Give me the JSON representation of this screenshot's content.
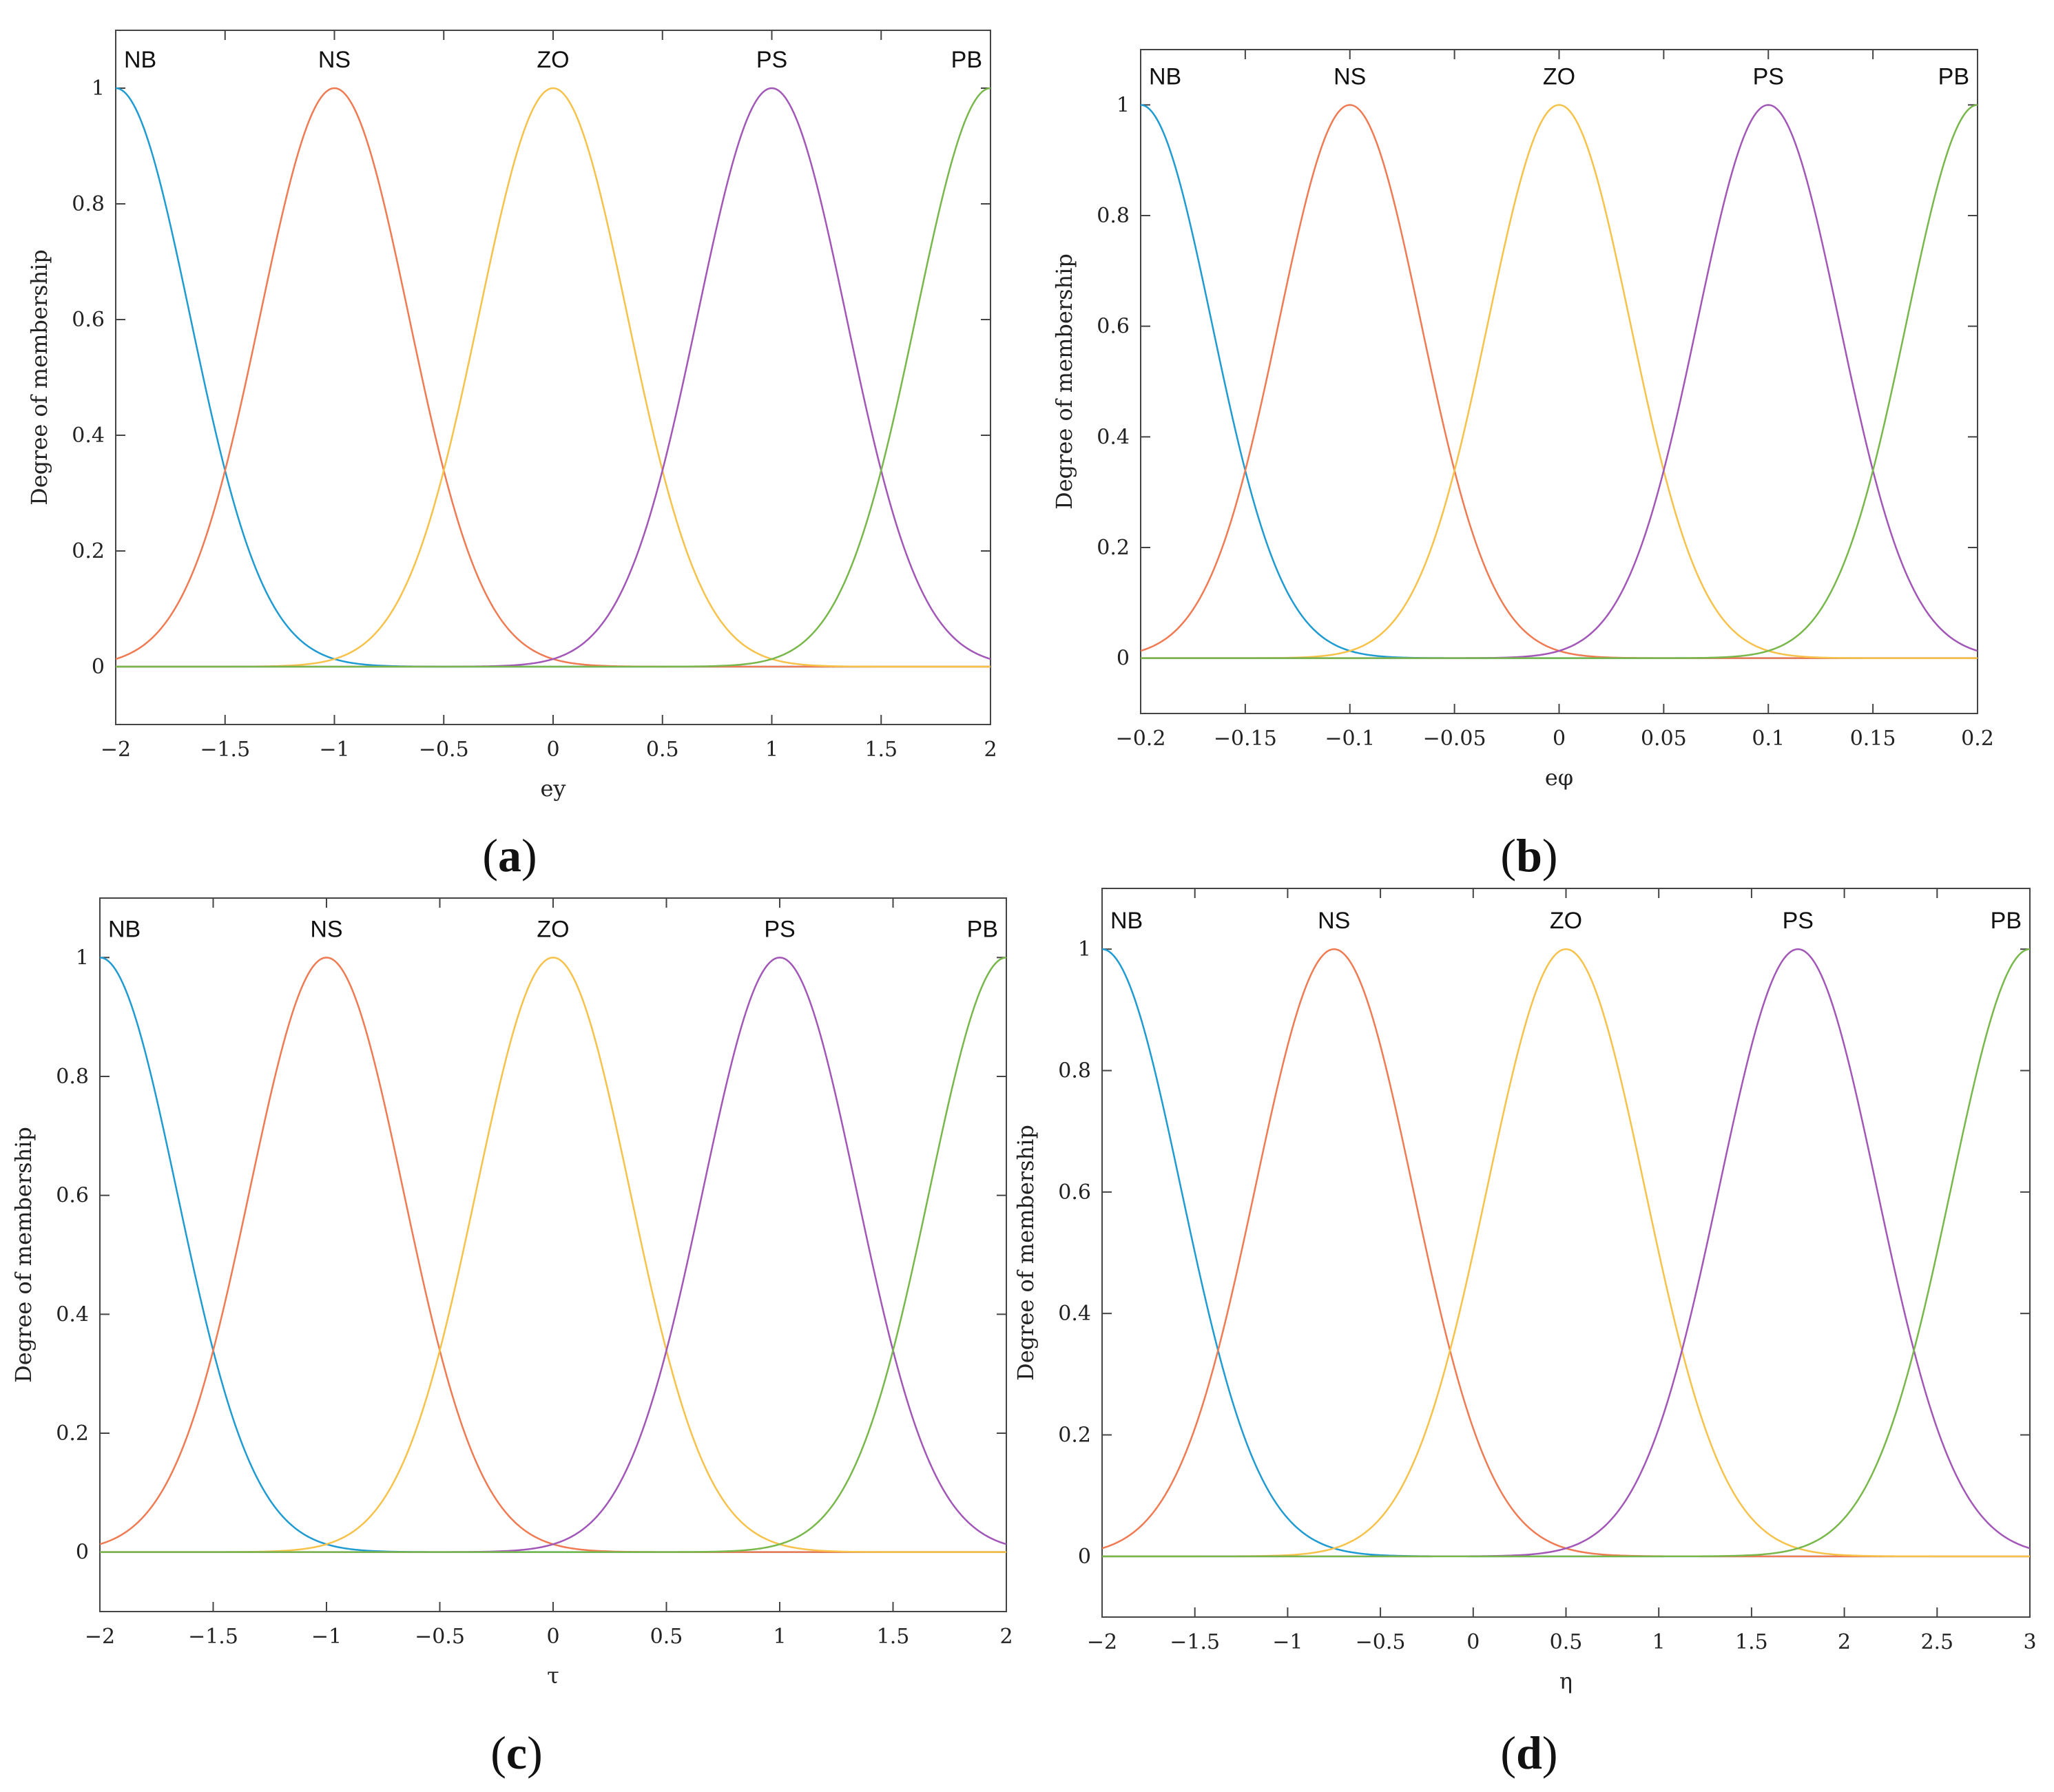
{
  "colors": {
    "NB": "#1f9bd3",
    "NS": "#f07a52",
    "ZO": "#f7c24a",
    "PS": "#a257b8",
    "PB": "#78b84a",
    "axes": "#444444"
  },
  "chart_data": [
    {
      "panel": "a",
      "caption_letter": "a",
      "type": "line",
      "xlabel": "ey",
      "ylabel": "Degree of membership",
      "xlim": [
        -2,
        2
      ],
      "ylim": [
        -0.1,
        1.1
      ],
      "xticks": [
        -2,
        -1.5,
        -1,
        -0.5,
        0,
        0.5,
        1,
        1.5,
        2
      ],
      "xtick_labels": [
        "−2",
        "−1.5",
        "−1",
        "−0.5",
        "0",
        "0.5",
        "1",
        "1.5",
        "2"
      ],
      "yticks": [
        0,
        0.2,
        0.4,
        0.6,
        0.8,
        1
      ],
      "ytick_labels": [
        "0",
        "0.2",
        "0.4",
        "0.6",
        "0.8",
        "1"
      ],
      "grid": false,
      "membership_function": "gaussian",
      "series": [
        {
          "name": "NB",
          "center": -2,
          "sigma": 0.34
        },
        {
          "name": "NS",
          "center": -1,
          "sigma": 0.34
        },
        {
          "name": "ZO",
          "center": 0,
          "sigma": 0.34
        },
        {
          "name": "PS",
          "center": 1,
          "sigma": 0.34
        },
        {
          "name": "PB",
          "center": 2,
          "sigma": 0.34
        }
      ]
    },
    {
      "panel": "b",
      "caption_letter": "b",
      "type": "line",
      "xlabel": "eφ",
      "ylabel": "Degree of membership",
      "xlim": [
        -0.2,
        0.2
      ],
      "ylim": [
        -0.1,
        1.1
      ],
      "xticks": [
        -0.2,
        -0.15,
        -0.1,
        -0.05,
        0,
        0.05,
        0.1,
        0.15,
        0.2
      ],
      "xtick_labels": [
        "−0.2",
        "−0.15",
        "−0.1",
        "−0.05",
        "0",
        "0.05",
        "0.1",
        "0.15",
        "0.2"
      ],
      "yticks": [
        0,
        0.2,
        0.4,
        0.6,
        0.8,
        1
      ],
      "ytick_labels": [
        "0",
        "0.2",
        "0.4",
        "0.6",
        "0.8",
        "1"
      ],
      "grid": false,
      "membership_function": "gaussian",
      "series": [
        {
          "name": "NB",
          "center": -0.2,
          "sigma": 0.034
        },
        {
          "name": "NS",
          "center": -0.1,
          "sigma": 0.034
        },
        {
          "name": "ZO",
          "center": 0,
          "sigma": 0.034
        },
        {
          "name": "PS",
          "center": 0.1,
          "sigma": 0.034
        },
        {
          "name": "PB",
          "center": 0.2,
          "sigma": 0.034
        }
      ]
    },
    {
      "panel": "c",
      "caption_letter": "c",
      "type": "line",
      "xlabel": "τ",
      "ylabel": "Degree of membership",
      "xlim": [
        -2,
        2
      ],
      "ylim": [
        -0.1,
        1.1
      ],
      "xticks": [
        -2,
        -1.5,
        -1,
        -0.5,
        0,
        0.5,
        1,
        1.5,
        2
      ],
      "xtick_labels": [
        "−2",
        "−1.5",
        "−1",
        "−0.5",
        "0",
        "0.5",
        "1",
        "1.5",
        "2"
      ],
      "yticks": [
        0,
        0.2,
        0.4,
        0.6,
        0.8,
        1
      ],
      "ytick_labels": [
        "0",
        "0.2",
        "0.4",
        "0.6",
        "0.8",
        "1"
      ],
      "grid": false,
      "membership_function": "gaussian",
      "series": [
        {
          "name": "NB",
          "center": -2,
          "sigma": 0.34
        },
        {
          "name": "NS",
          "center": -1,
          "sigma": 0.34
        },
        {
          "name": "ZO",
          "center": 0,
          "sigma": 0.34
        },
        {
          "name": "PS",
          "center": 1,
          "sigma": 0.34
        },
        {
          "name": "PB",
          "center": 2,
          "sigma": 0.34
        }
      ]
    },
    {
      "panel": "d",
      "caption_letter": "d",
      "type": "line",
      "xlabel": "η",
      "ylabel": "Degree of membership",
      "xlim": [
        -2,
        3
      ],
      "ylim": [
        -0.1,
        1.1
      ],
      "xticks": [
        -2,
        -1.5,
        -1,
        -0.5,
        0,
        0.5,
        1,
        1.5,
        2,
        2.5,
        3
      ],
      "xtick_labels": [
        "−2",
        "−1.5",
        "−1",
        "−0.5",
        "0",
        "0.5",
        "1",
        "1.5",
        "2",
        "2.5",
        "3"
      ],
      "yticks": [
        0,
        0.2,
        0.4,
        0.6,
        0.8,
        1
      ],
      "ytick_labels": [
        "0",
        "0.2",
        "0.4",
        "0.6",
        "0.8",
        "1"
      ],
      "grid": false,
      "membership_function": "gaussian",
      "series": [
        {
          "name": "NB",
          "center": -2,
          "sigma": 0.425
        },
        {
          "name": "NS",
          "center": -0.75,
          "sigma": 0.425
        },
        {
          "name": "ZO",
          "center": 0.5,
          "sigma": 0.425
        },
        {
          "name": "PS",
          "center": 1.75,
          "sigma": 0.425
        },
        {
          "name": "PB",
          "center": 3,
          "sigma": 0.425
        }
      ]
    }
  ]
}
